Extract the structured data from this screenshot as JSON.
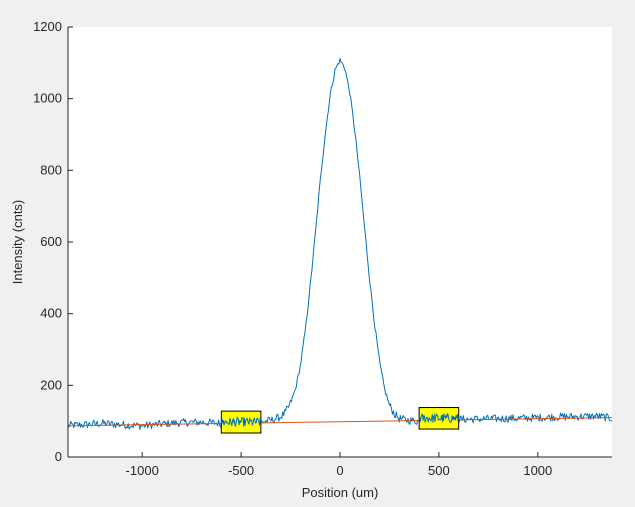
{
  "figure": {
    "background": "#f0f0f0"
  },
  "chart_data": {
    "type": "line",
    "xlabel": "Position (um)",
    "ylabel": "Intensity (cnts)",
    "xlim": [
      -1375,
      1375
    ],
    "ylim": [
      0,
      1200
    ],
    "xticks": [
      -1000,
      -500,
      0,
      500,
      1000
    ],
    "xtick_labels": [
      "-1000",
      "-500",
      "0",
      "500",
      "1000"
    ],
    "yticks": [
      0,
      200,
      400,
      600,
      800,
      1000,
      1200
    ],
    "ytick_labels": [
      "0",
      "200",
      "400",
      "600",
      "800",
      "1000",
      "1200"
    ],
    "grid": false,
    "series": [
      {
        "style": "line",
        "color": "#0072BD",
        "x": [
          -1375,
          -1300,
          -1200,
          -1100,
          -1000,
          -900,
          -800,
          -700,
          -600,
          -500,
          -450,
          -400,
          -350,
          -300,
          -275,
          -250,
          -225,
          -200,
          -175,
          -150,
          -125,
          -100,
          -75,
          -50,
          -25,
          0,
          25,
          50,
          75,
          100,
          125,
          150,
          175,
          200,
          225,
          250,
          275,
          300,
          350,
          400,
          450,
          500,
          550,
          600,
          700,
          800,
          900,
          1000,
          1100,
          1200,
          1300,
          1375
        ],
        "y": [
          88,
          90,
          94,
          90,
          87,
          92,
          96,
          97,
          94,
          95,
          96,
          98,
          102,
          112,
          125,
          150,
          190,
          255,
          355,
          480,
          620,
          770,
          900,
          1010,
          1080,
          1108,
          1085,
          1015,
          910,
          780,
          635,
          495,
          370,
          265,
          190,
          145,
          120,
          107,
          102,
          100,
          101,
          103,
          104,
          105,
          106,
          107,
          108,
          110,
          112,
          113,
          114,
          108
        ]
      },
      {
        "style": "line",
        "color": "#D95319",
        "x": [
          -1375,
          1375
        ],
        "y": [
          87,
          110
        ]
      }
    ],
    "regions": [
      {
        "x": [
          -600,
          -400
        ],
        "y": [
          67,
          128
        ],
        "color": "#ffff00"
      },
      {
        "x": [
          400,
          600
        ],
        "y": [
          78,
          138
        ],
        "color": "#ffff00"
      }
    ]
  }
}
